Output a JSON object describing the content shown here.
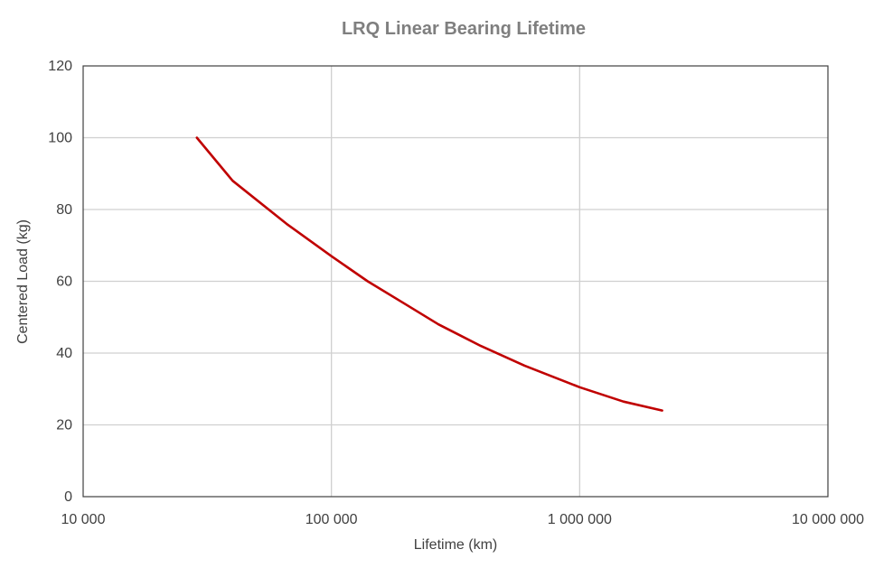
{
  "chart_data": {
    "type": "line",
    "title": "LRQ Linear Bearing Lifetime",
    "xlabel": "Lifetime (km)",
    "ylabel": "Centered Load (kg)",
    "xscale": "log",
    "xlim": [
      10000,
      10000000
    ],
    "ylim": [
      0,
      120
    ],
    "x_ticks": [
      10000,
      100000,
      1000000,
      10000000
    ],
    "x_tick_labels": [
      "10 000",
      "100 000",
      "1 000 000",
      "10 000 000"
    ],
    "y_ticks": [
      0,
      20,
      40,
      60,
      80,
      100,
      120
    ],
    "y_tick_labels": [
      "0",
      "20",
      "40",
      "60",
      "80",
      "100",
      "120"
    ],
    "grid": true,
    "legend": "none",
    "series_color": "#c00000",
    "series": [
      {
        "x": [
          28700,
          40000,
          66000,
          100000,
          140000,
          200000,
          270000,
          400000,
          600000,
          1000000,
          1500000,
          2150000
        ],
        "values": [
          100,
          88,
          76,
          67,
          60,
          53.5,
          48,
          42,
          36.5,
          30.5,
          26.5,
          24
        ]
      }
    ]
  }
}
